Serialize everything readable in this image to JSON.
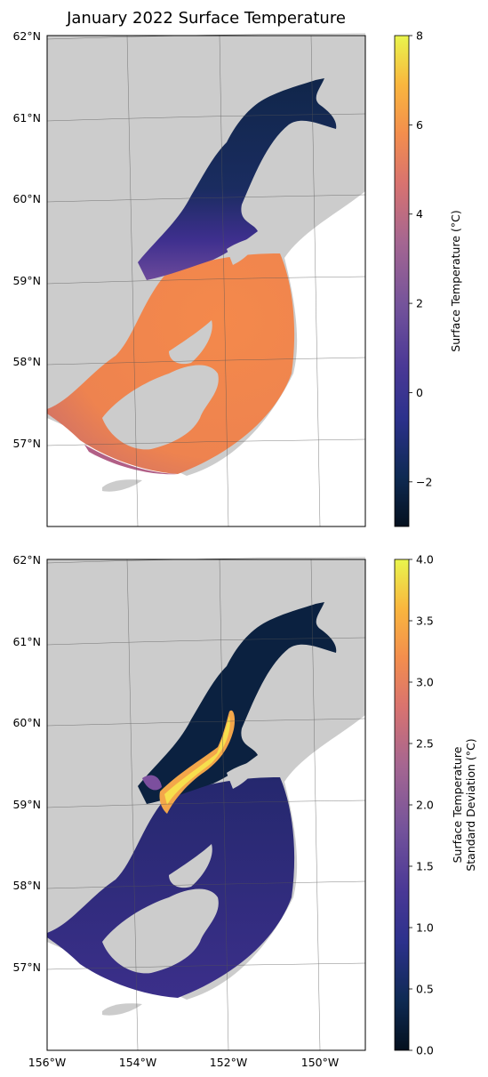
{
  "chart_data": [
    {
      "type": "heatmap",
      "title": "January 2022 Surface Temperature",
      "lat_ticks": [
        "62°N",
        "61°N",
        "60°N",
        "59°N",
        "58°N",
        "57°N"
      ],
      "lon_ticks": [],
      "colorbar": {
        "label": "Surface Temperature (°C)",
        "range": [
          -3,
          8
        ],
        "ticks": [
          8,
          6,
          4,
          2,
          0,
          -2
        ],
        "colormap": "thermal"
      },
      "field": "surface temperature",
      "map_extent": {
        "lon": [
          -156,
          -149
        ],
        "lat": [
          56,
          62
        ]
      },
      "colors": {
        "land": "#cccccc",
        "ocean_background": "#ffffff",
        "cold_upper_inlet": "#102a4e",
        "mid_inlet": "#4a2f8f",
        "shelf_water": "#f08a4b"
      }
    },
    {
      "type": "heatmap",
      "title": "",
      "lat_ticks": [
        "62°N",
        "61°N",
        "60°N",
        "59°N",
        "58°N",
        "57°N"
      ],
      "lon_ticks": [
        "156°W",
        "154°W",
        "152°W",
        "150°W"
      ],
      "colorbar": {
        "label_lines": [
          "Surface Temperature",
          "Standard Deviation (°C)"
        ],
        "range": [
          0,
          4
        ],
        "ticks": [
          "4.0",
          "3.5",
          "3.0",
          "2.5",
          "2.0",
          "1.5",
          "1.0",
          "0.5",
          "0.0"
        ],
        "colormap": "thermal"
      },
      "field": "surface temperature standard deviation",
      "map_extent": {
        "lon": [
          -156,
          -149
        ],
        "lat": [
          56,
          62
        ]
      },
      "colors": {
        "land": "#cccccc",
        "ocean_background": "#ffffff",
        "low": "#0b2140",
        "moderate": "#3c2f8c",
        "high": "#f6c84a"
      }
    }
  ]
}
